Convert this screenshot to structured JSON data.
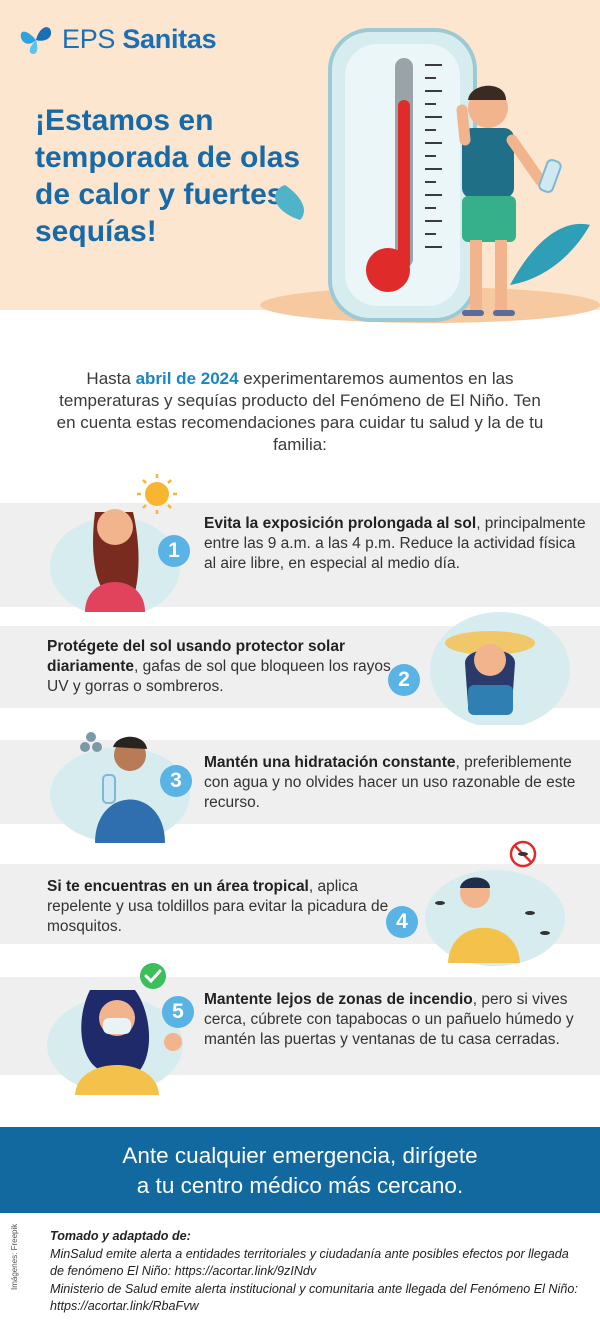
{
  "brand": {
    "name_light": "EPS",
    "name_bold": "Sanitas",
    "color": "#1b6fb5"
  },
  "headline": "¡Estamos en temporada de olas de calor y fuertes sequías!",
  "intro": {
    "before": "Hasta ",
    "highlight": "abril de 2024",
    "after": " experimentaremos aumentos en las temperaturas y sequías producto del Fenómeno de El Niño. Ten en cuenta estas recomendaciones para cuidar tu salud y la de tu familia:"
  },
  "tips": [
    {
      "number": "1",
      "bold": "Evita la exposición prolongada al sol",
      "rest": ", principalmente entre las 9 a.m. a las 4 p.m. Reduce la actividad física al aire libre, en especial al medio día."
    },
    {
      "number": "2",
      "bold": "Protégete del sol usando protector solar diariamente",
      "rest": ", gafas de sol que bloqueen los rayos UV y gorras o sombreros."
    },
    {
      "number": "3",
      "bold": "Mantén una hidratación constante",
      "rest": ", preferiblemente con agua y no olvides hacer un uso razonable de este recurso."
    },
    {
      "number": "4",
      "bold": "Si te encuentras en un área tropical",
      "rest": ", aplica repelente y usa toldillos para evitar la picadura de mosquitos."
    },
    {
      "number": "5",
      "bold": "Mantente lejos de zonas de incendio",
      "rest": ", pero si vives cerca, cúbrete con tapabocas o un pañuelo húmedo y mantén las puertas y ventanas de tu casa cerradas."
    }
  ],
  "cta": {
    "line1": "Ante cualquier emergencia, dirígete",
    "line2": "a tu centro médico más cercano."
  },
  "references": {
    "title": "Tomado y adaptado de:",
    "items": [
      "MinSalud emite alerta a entidades territoriales y ciudadanía ante posibles efectos por llegada de fenómeno El Niño: https://acortar.link/9zINdv",
      "Ministerio de Salud emite alerta institucional y comunitaria ante llegada del Fenómeno El Niño: https://acortar.link/RbaFvw"
    ]
  },
  "credit": "Imágenes: Freepik",
  "colors": {
    "header_bg": "#fde6cf",
    "accent_blue": "#176aa8",
    "number_badge": "#59b3e4",
    "cta_bg": "#11699f",
    "band_bg": "#efefef"
  },
  "icons": [
    "butterfly-logo-icon",
    "thermometer-icon",
    "sun-icon",
    "check-icon",
    "mosquito-icon",
    "water-drops-icon"
  ]
}
